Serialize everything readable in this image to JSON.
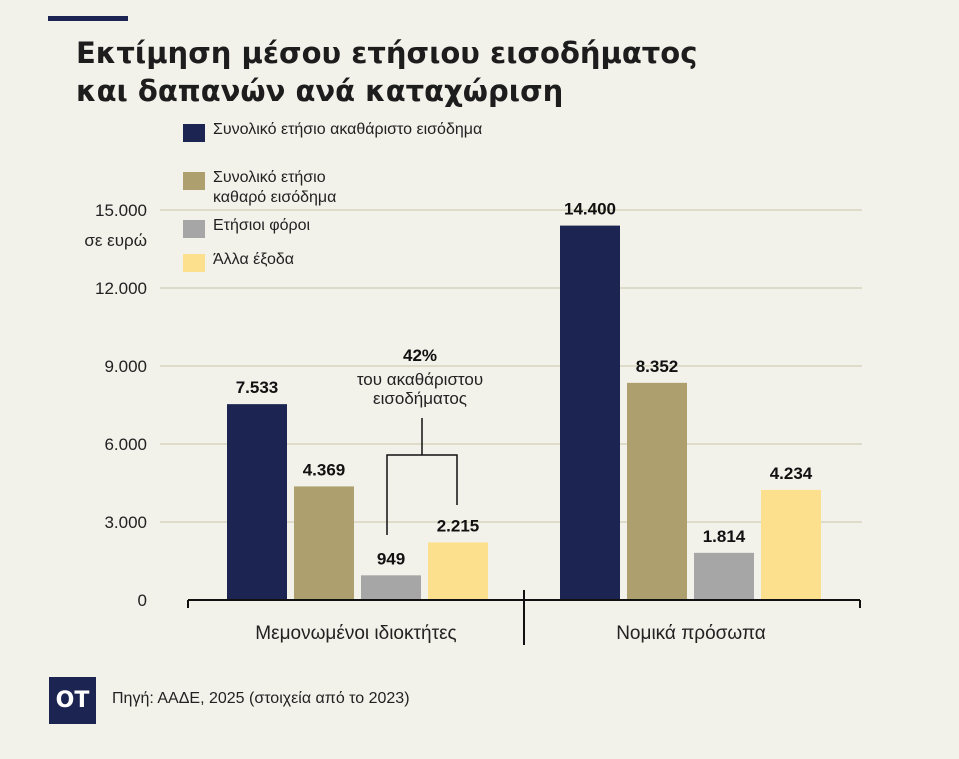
{
  "header": {
    "title_line1": "Εκτίμηση μέσου ετήσιου εισοδήματος",
    "title_line2": "και δαπανών ανά καταχώριση"
  },
  "legend": {
    "items": [
      {
        "label": "Συνολικό ετήσιο ακαθάριστο εισόδημα",
        "color": "#1c2552"
      },
      {
        "label": "Συνολικό ετήσιο καθαρό εισόδημα",
        "color": "#ada06e"
      },
      {
        "label": "Ετήσιοι φόροι",
        "color": "#a6a6a6"
      },
      {
        "label": "Άλλα έξοδα",
        "color": "#fde08d"
      }
    ]
  },
  "chart_data": {
    "type": "bar",
    "ylabel": "σε ευρώ",
    "ylim": [
      0,
      15000
    ],
    "yticks": [
      0,
      3000,
      6000,
      9000,
      12000,
      15000
    ],
    "ytick_labels": [
      "0",
      "3.000",
      "6.000",
      "9.000",
      "12.000",
      "15.000"
    ],
    "grid": true,
    "categories": [
      "Μεμονωμένοι ιδιοκτήτες",
      "Νομικά πρόσωπα"
    ],
    "series": [
      {
        "name": "Συνολικό ετήσιο ακαθάριστο εισόδημα",
        "color": "#1c2552",
        "values": [
          7533,
          14400
        ],
        "labels": [
          "7.533",
          "14.400"
        ]
      },
      {
        "name": "Συνολικό ετήσιο καθαρό εισόδημα",
        "color": "#ada06e",
        "values": [
          4369,
          8352
        ],
        "labels": [
          "4.369",
          "8.352"
        ]
      },
      {
        "name": "Ετήσιοι φόροι",
        "color": "#a6a6a6",
        "values": [
          949,
          1814
        ],
        "labels": [
          "949",
          "1.814"
        ]
      },
      {
        "name": "Άλλα έξοδα",
        "color": "#fde08d",
        "values": [
          2215,
          4234
        ],
        "labels": [
          "2.215",
          "4.234"
        ]
      }
    ],
    "annotation": {
      "percent": "42%",
      "line1": "του ακαθάριστου",
      "line2": "εισοδήματος"
    }
  },
  "footer": {
    "logo": "OT",
    "source": "Πηγή: ΑΑΔΕ, 2025 (στοιχεία από το 2023)"
  }
}
